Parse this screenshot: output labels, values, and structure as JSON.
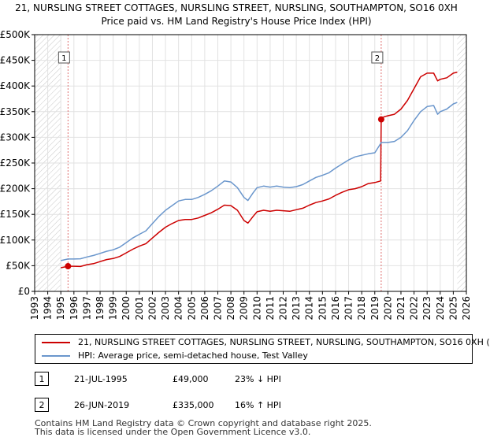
{
  "title": {
    "line1": "21, NURSLING STREET COTTAGES, NURSLING STREET, NURSLING, SOUTHAMPTON, SO16 0XH",
    "line2": "Price paid vs. HM Land Registry's House Price Index (HPI)"
  },
  "chart_data": {
    "type": "line",
    "title": "21, NURSLING STREET COTTAGES, NURSLING STREET, NURSLING, SOUTHAMPTON, SO16 0XH — Price paid vs. HM Land Registry's House Price Index (HPI)",
    "xlabel": "",
    "ylabel": "",
    "xlim": [
      1993,
      2026
    ],
    "ylim": [
      0,
      500000
    ],
    "grid": true,
    "x_ticks": [
      1993,
      1994,
      1995,
      1996,
      1997,
      1998,
      1999,
      2000,
      2001,
      2002,
      2003,
      2004,
      2005,
      2006,
      2007,
      2008,
      2009,
      2010,
      2011,
      2012,
      2013,
      2014,
      2015,
      2016,
      2017,
      2018,
      2019,
      2020,
      2021,
      2022,
      2023,
      2024,
      2025,
      2026
    ],
    "y_ticks": [
      {
        "value": 0,
        "label": "£0"
      },
      {
        "value": 50000,
        "label": "£50K"
      },
      {
        "value": 100000,
        "label": "£100K"
      },
      {
        "value": 150000,
        "label": "£150K"
      },
      {
        "value": 200000,
        "label": "£200K"
      },
      {
        "value": 250000,
        "label": "£250K"
      },
      {
        "value": 300000,
        "label": "£300K"
      },
      {
        "value": 350000,
        "label": "£350K"
      },
      {
        "value": 400000,
        "label": "£400K"
      },
      {
        "value": 450000,
        "label": "£450K"
      },
      {
        "value": 500000,
        "label": "£500K"
      }
    ],
    "hatched_ranges": [
      [
        1993,
        1995.0
      ],
      [
        2025.3,
        2026
      ]
    ],
    "sale_markers": [
      {
        "label": "1",
        "x": 1995.55,
        "y": 49000
      },
      {
        "label": "2",
        "x": 2019.49,
        "y": 335000
      }
    ],
    "series": [
      {
        "name": "21, NURSLING STREET COTTAGES, NURSLING STREET, NURSLING, SOUTHAMPTON, SO16 0XH (",
        "color": "#cc0000",
        "points": [
          [
            1995.0,
            46000
          ],
          [
            1995.55,
            49000
          ],
          [
            1996,
            49000
          ],
          [
            1996.5,
            48500
          ],
          [
            1997,
            52000
          ],
          [
            1997.5,
            54000
          ],
          [
            1998,
            58000
          ],
          [
            1998.5,
            62000
          ],
          [
            1999,
            64000
          ],
          [
            1999.5,
            68000
          ],
          [
            2000,
            75000
          ],
          [
            2000.5,
            82000
          ],
          [
            2001,
            88000
          ],
          [
            2001.5,
            93000
          ],
          [
            2002,
            104000
          ],
          [
            2002.5,
            115000
          ],
          [
            2003,
            125000
          ],
          [
            2003.5,
            132000
          ],
          [
            2004,
            138000
          ],
          [
            2004.5,
            140000
          ],
          [
            2005,
            140000
          ],
          [
            2005.5,
            143000
          ],
          [
            2006,
            148000
          ],
          [
            2006.5,
            153000
          ],
          [
            2007,
            160000
          ],
          [
            2007.5,
            168000
          ],
          [
            2008,
            167000
          ],
          [
            2008.5,
            158000
          ],
          [
            2009,
            138000
          ],
          [
            2009.3,
            133000
          ],
          [
            2009.7,
            146000
          ],
          [
            2010,
            155000
          ],
          [
            2010.5,
            158000
          ],
          [
            2011,
            156000
          ],
          [
            2011.5,
            158000
          ],
          [
            2012,
            157000
          ],
          [
            2012.5,
            156000
          ],
          [
            2013,
            159000
          ],
          [
            2013.5,
            162000
          ],
          [
            2014,
            168000
          ],
          [
            2014.5,
            173000
          ],
          [
            2015,
            176000
          ],
          [
            2015.5,
            180000
          ],
          [
            2016,
            187000
          ],
          [
            2016.5,
            193000
          ],
          [
            2017,
            198000
          ],
          [
            2017.5,
            200000
          ],
          [
            2018,
            204000
          ],
          [
            2018.5,
            210000
          ],
          [
            2019,
            212000
          ],
          [
            2019.45,
            215000
          ],
          [
            2019.49,
            335000
          ],
          [
            2019.7,
            340000
          ],
          [
            2020,
            342000
          ],
          [
            2020.5,
            345000
          ],
          [
            2021,
            355000
          ],
          [
            2021.5,
            372000
          ],
          [
            2022,
            395000
          ],
          [
            2022.5,
            418000
          ],
          [
            2023,
            425000
          ],
          [
            2023.5,
            425000
          ],
          [
            2023.8,
            410000
          ],
          [
            2024,
            413000
          ],
          [
            2024.5,
            416000
          ],
          [
            2025,
            425000
          ],
          [
            2025.3,
            427000
          ]
        ]
      },
      {
        "name": "HPI: Average price, semi-detached house, Test Valley",
        "color": "#6a96cc",
        "points": [
          [
            1995.0,
            60000
          ],
          [
            1995.55,
            63000
          ],
          [
            1996,
            63000
          ],
          [
            1996.5,
            63500
          ],
          [
            1997,
            67000
          ],
          [
            1997.5,
            70000
          ],
          [
            1998,
            74000
          ],
          [
            1998.5,
            78000
          ],
          [
            1999,
            81000
          ],
          [
            1999.5,
            86000
          ],
          [
            2000,
            95000
          ],
          [
            2000.5,
            104000
          ],
          [
            2001,
            111000
          ],
          [
            2001.5,
            118000
          ],
          [
            2002,
            132000
          ],
          [
            2002.5,
            146000
          ],
          [
            2003,
            158000
          ],
          [
            2003.5,
            167000
          ],
          [
            2004,
            176000
          ],
          [
            2004.5,
            179000
          ],
          [
            2005,
            179000
          ],
          [
            2005.5,
            183000
          ],
          [
            2006,
            189000
          ],
          [
            2006.5,
            196000
          ],
          [
            2007,
            205000
          ],
          [
            2007.5,
            215000
          ],
          [
            2008,
            213000
          ],
          [
            2008.5,
            202000
          ],
          [
            2009,
            183000
          ],
          [
            2009.3,
            177000
          ],
          [
            2009.7,
            192000
          ],
          [
            2010,
            202000
          ],
          [
            2010.5,
            205000
          ],
          [
            2011,
            203000
          ],
          [
            2011.5,
            205000
          ],
          [
            2012,
            203000
          ],
          [
            2012.5,
            202000
          ],
          [
            2013,
            204000
          ],
          [
            2013.5,
            208000
          ],
          [
            2014,
            215000
          ],
          [
            2014.5,
            222000
          ],
          [
            2015,
            226000
          ],
          [
            2015.5,
            231000
          ],
          [
            2016,
            240000
          ],
          [
            2016.5,
            248000
          ],
          [
            2017,
            256000
          ],
          [
            2017.5,
            262000
          ],
          [
            2018,
            265000
          ],
          [
            2018.5,
            268000
          ],
          [
            2019,
            270000
          ],
          [
            2019.5,
            290000
          ],
          [
            2020,
            290000
          ],
          [
            2020.5,
            292000
          ],
          [
            2021,
            300000
          ],
          [
            2021.5,
            313000
          ],
          [
            2022,
            333000
          ],
          [
            2022.5,
            350000
          ],
          [
            2023,
            360000
          ],
          [
            2023.5,
            362000
          ],
          [
            2023.8,
            345000
          ],
          [
            2024,
            350000
          ],
          [
            2024.5,
            355000
          ],
          [
            2025,
            365000
          ],
          [
            2025.3,
            368000
          ]
        ]
      }
    ]
  },
  "legend": [
    {
      "label": "21, NURSLING STREET COTTAGES, NURSLING STREET, NURSLING, SOUTHAMPTON, SO16 0XH (",
      "color": "#cc0000"
    },
    {
      "label": "HPI: Average price, semi-detached house, Test Valley",
      "color": "#6a96cc"
    }
  ],
  "sales": [
    {
      "num": "1",
      "date": "21-JUL-1995",
      "price": "£49,000",
      "hpi": "23% ↓ HPI"
    },
    {
      "num": "2",
      "date": "26-JUN-2019",
      "price": "£335,000",
      "hpi": "16% ↑ HPI"
    }
  ],
  "footer": {
    "line1": "Contains HM Land Registry data © Crown copyright and database right 2025.",
    "line2": "This data is licensed under the Open Government Licence v3.0."
  }
}
